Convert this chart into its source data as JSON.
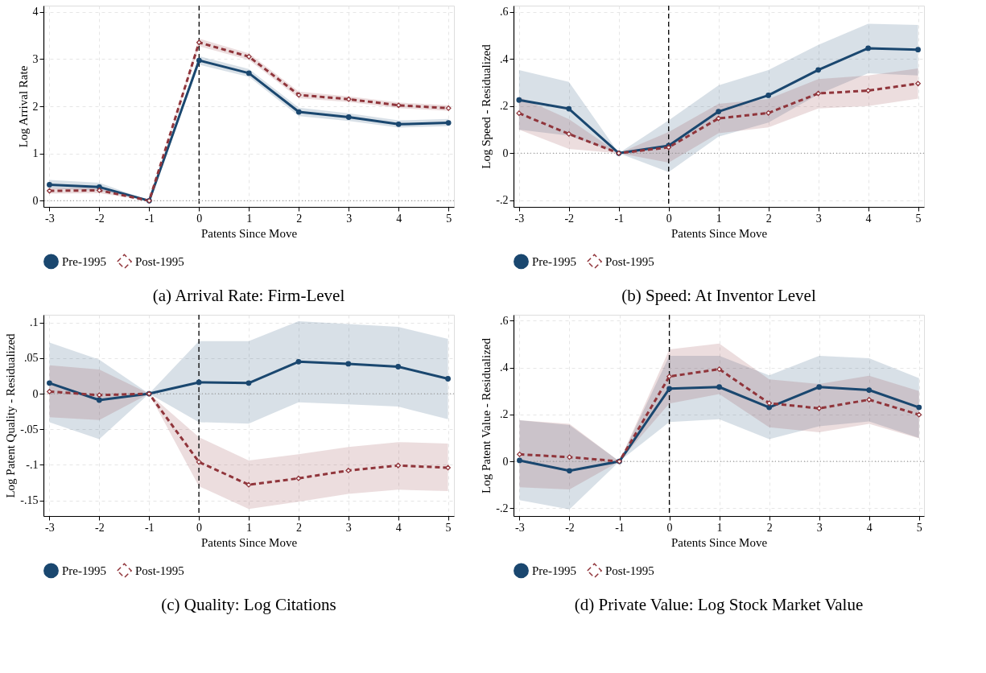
{
  "chart_data": [
    {
      "type": "line",
      "title": "(a) Arrival Rate: Firm-Level",
      "xlabel": "Patents Since Move",
      "ylabel": "Log Arrival Rate",
      "x": [
        -3,
        -2,
        -1,
        0,
        1,
        2,
        3,
        4,
        5
      ],
      "xlim": [
        -3.12,
        5.11
      ],
      "xticks": [
        -3,
        -2,
        -1,
        0,
        1,
        2,
        3,
        4,
        5
      ],
      "ylim": [
        -0.13,
        4.13
      ],
      "yticks": [
        0,
        1,
        2,
        3,
        4
      ],
      "grid": true,
      "legend": "bottom",
      "ref_lines": [
        {
          "axis": "x",
          "value": 0,
          "color": "#000000",
          "line_style": "dashed"
        },
        {
          "axis": "y",
          "value": 0,
          "color": "#999999",
          "line_style": "dotted"
        }
      ],
      "series": [
        {
          "name": "Pre-1995",
          "color": "#1a476f",
          "marker": "circle",
          "line_style": "solid",
          "values": [
            0.34,
            0.29,
            0,
            2.97,
            2.7,
            1.88,
            1.77,
            1.62,
            1.65
          ],
          "lower": [
            0.26,
            0.21,
            0,
            2.88,
            2.62,
            1.79,
            1.69,
            1.55,
            1.58
          ],
          "upper": [
            0.44,
            0.38,
            0,
            3.06,
            2.79,
            1.97,
            1.85,
            1.7,
            1.73
          ]
        },
        {
          "name": "Post-1995",
          "color": "#90353b",
          "marker": "diamond",
          "line_style": "dashed",
          "values": [
            0.21,
            0.22,
            0,
            3.35,
            3.05,
            2.24,
            2.15,
            2.02,
            1.96
          ],
          "lower": [
            0.15,
            0.16,
            0,
            3.27,
            2.98,
            2.17,
            2.09,
            1.96,
            1.9
          ],
          "upper": [
            0.27,
            0.28,
            0,
            3.43,
            3.12,
            2.31,
            2.21,
            2.08,
            2.02
          ]
        }
      ]
    },
    {
      "type": "line",
      "title": "(b) Speed: At Inventor Level",
      "xlabel": "Patents Since Move",
      "ylabel": "Log Speed - Residualized",
      "x": [
        -3,
        -2,
        -1,
        0,
        1,
        2,
        3,
        4,
        5
      ],
      "xlim": [
        -3.11,
        5.12
      ],
      "xticks": [
        -3,
        -2,
        -1,
        0,
        1,
        2,
        3,
        4,
        5
      ],
      "ylim": [
        -0.228,
        0.627
      ],
      "yticks": [
        {
          "value": -0.2,
          "label": "-.2"
        },
        0,
        {
          "value": 0.2,
          "label": ".2"
        },
        {
          "value": 0.4,
          "label": ".4"
        },
        {
          "value": 0.6,
          "label": ".6"
        }
      ],
      "grid": true,
      "legend": "bottom",
      "ref_lines": [
        {
          "axis": "x",
          "value": 0,
          "color": "#000000",
          "line_style": "dashed"
        },
        {
          "axis": "y",
          "value": 0,
          "color": "#999999",
          "line_style": "dotted"
        }
      ],
      "series": [
        {
          "name": "Pre-1995",
          "color": "#1a476f",
          "marker": "circle",
          "line_style": "solid",
          "values": [
            0.226,
            0.189,
            0,
            0.032,
            0.177,
            0.246,
            0.354,
            0.446,
            0.44
          ],
          "lower": [
            0.1,
            0.075,
            0,
            -0.08,
            0.07,
            0.13,
            0.25,
            0.34,
            0.33
          ],
          "upper": [
            0.353,
            0.303,
            0,
            0.14,
            0.288,
            0.353,
            0.46,
            0.55,
            0.545
          ]
        },
        {
          "name": "Post-1995",
          "color": "#90353b",
          "marker": "diamond",
          "line_style": "dashed",
          "values": [
            0.17,
            0.082,
            0,
            0.025,
            0.148,
            0.171,
            0.254,
            0.266,
            0.296
          ],
          "lower": [
            0.1,
            0.018,
            0,
            -0.04,
            0.085,
            0.11,
            0.19,
            0.2,
            0.232
          ],
          "upper": [
            0.24,
            0.145,
            0,
            0.09,
            0.21,
            0.23,
            0.315,
            0.33,
            0.36
          ]
        }
      ]
    },
    {
      "type": "line",
      "title": "(c) Quality: Log Citations",
      "xlabel": "Patents Since Move",
      "ylabel": "Log Patent Quality - Residualized",
      "x": [
        -3,
        -2,
        -1,
        0,
        1,
        2,
        3,
        4,
        5
      ],
      "xlim": [
        -3.12,
        5.12
      ],
      "xticks": [
        -3,
        -2,
        -1,
        0,
        1,
        2,
        3,
        4,
        5
      ],
      "ylim": [
        -0.172,
        0.111
      ],
      "yticks": [
        {
          "value": -0.15,
          "label": "-.15"
        },
        {
          "value": -0.1,
          "label": "-.1"
        },
        {
          "value": -0.05,
          "label": "-.05"
        },
        0,
        {
          "value": 0.05,
          "label": ".05"
        },
        {
          "value": 0.1,
          "label": ".1"
        }
      ],
      "grid": true,
      "legend": "bottom",
      "ref_lines": [
        {
          "axis": "x",
          "value": 0,
          "color": "#000000",
          "line_style": "dashed"
        },
        {
          "axis": "y",
          "value": 0,
          "color": "#999999",
          "line_style": "dotted"
        }
      ],
      "series": [
        {
          "name": "Pre-1995",
          "color": "#1a476f",
          "marker": "circle",
          "line_style": "solid",
          "values": [
            0.015,
            -0.009,
            0,
            0.016,
            0.015,
            0.045,
            0.042,
            0.038,
            0.021
          ],
          "lower": [
            -0.04,
            -0.064,
            0,
            -0.04,
            -0.042,
            -0.012,
            -0.015,
            -0.018,
            -0.036
          ],
          "upper": [
            0.072,
            0.048,
            0,
            0.074,
            0.074,
            0.102,
            0.098,
            0.094,
            0.077
          ]
        },
        {
          "name": "Post-1995",
          "color": "#90353b",
          "marker": "diamond",
          "line_style": "dashed",
          "values": [
            0.003,
            -0.002,
            0,
            -0.096,
            -0.128,
            -0.119,
            -0.108,
            -0.101,
            -0.104
          ],
          "lower": [
            -0.033,
            -0.037,
            0,
            -0.13,
            -0.162,
            -0.152,
            -0.141,
            -0.135,
            -0.137
          ],
          "upper": [
            0.04,
            0.034,
            0,
            -0.061,
            -0.094,
            -0.085,
            -0.075,
            -0.068,
            -0.07
          ]
        }
      ]
    },
    {
      "type": "line",
      "title": "(d) Private Value: Log Stock Market Value",
      "xlabel": "Patents Since Move",
      "ylabel": "Log Patent Value - Residualized",
      "x": [
        -3,
        -2,
        -1,
        0,
        1,
        2,
        3,
        4,
        5
      ],
      "xlim": [
        -3.12,
        5.1
      ],
      "xticks": [
        -3,
        -2,
        -1,
        0,
        1,
        2,
        3,
        4,
        5
      ],
      "ylim": [
        -0.233,
        0.625
      ],
      "yticks": [
        {
          "value": -0.2,
          "label": "-.2"
        },
        0,
        {
          "value": 0.2,
          "label": ".2"
        },
        {
          "value": 0.4,
          "label": ".4"
        },
        {
          "value": 0.6,
          "label": ".6"
        }
      ],
      "grid": true,
      "legend": "bottom",
      "ref_lines": [
        {
          "axis": "x",
          "value": 0,
          "color": "#000000",
          "line_style": "dashed"
        },
        {
          "axis": "y",
          "value": 0,
          "color": "#999999",
          "line_style": "dotted"
        }
      ],
      "series": [
        {
          "name": "Pre-1995",
          "color": "#1a476f",
          "marker": "circle",
          "line_style": "solid",
          "values": [
            0.004,
            -0.04,
            0,
            0.31,
            0.317,
            0.23,
            0.317,
            0.304,
            0.23
          ],
          "lower": [
            -0.165,
            -0.205,
            0,
            0.168,
            0.18,
            0.095,
            0.15,
            0.17,
            0.1
          ],
          "upper": [
            0.175,
            0.155,
            0,
            0.45,
            0.45,
            0.367,
            0.45,
            0.44,
            0.355
          ]
        },
        {
          "name": "Post-1995",
          "color": "#90353b",
          "marker": "diamond",
          "line_style": "dashed",
          "values": [
            0.03,
            0.018,
            0,
            0.362,
            0.393,
            0.248,
            0.226,
            0.263,
            0.199
          ],
          "lower": [
            -0.11,
            -0.12,
            0,
            0.247,
            0.287,
            0.145,
            0.124,
            0.16,
            0.098
          ],
          "upper": [
            0.175,
            0.16,
            0,
            0.477,
            0.502,
            0.35,
            0.33,
            0.365,
            0.3
          ]
        }
      ]
    }
  ]
}
